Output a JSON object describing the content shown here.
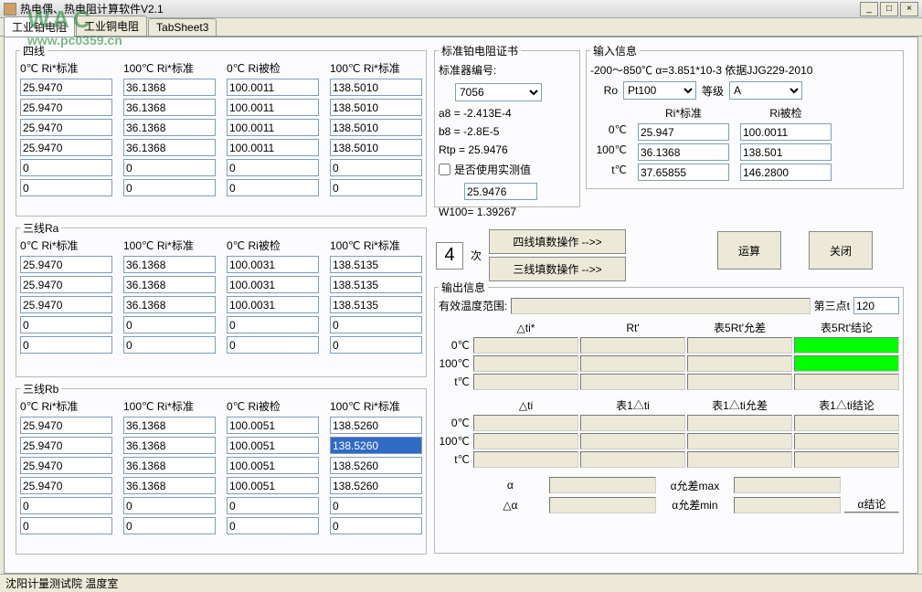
{
  "window": {
    "title": "热电偶、热电阻计算软件V2.1"
  },
  "tabs": {
    "t1": "工业铂电阻",
    "t2": "工业铜电阻",
    "t3": "TabSheet3"
  },
  "watermark": {
    "line1": "WAC",
    "line2": "www.pc0359.cn"
  },
  "left": {
    "sections": [
      {
        "name": "四线",
        "headers": [
          "0℃ Ri*标准",
          "100℃ Ri*标准",
          "0℃ Ri被检",
          "100℃ Ri*标准"
        ],
        "rows": [
          [
            "25.9470",
            "36.1368",
            "100.0011",
            "138.5010"
          ],
          [
            "25.9470",
            "36.1368",
            "100.0011",
            "138.5010"
          ],
          [
            "25.9470",
            "36.1368",
            "100.0011",
            "138.5010"
          ],
          [
            "25.9470",
            "36.1368",
            "100.0011",
            "138.5010"
          ],
          [
            "0",
            "0",
            "0",
            "0"
          ],
          [
            "0",
            "0",
            "0",
            "0"
          ]
        ],
        "selected": null
      },
      {
        "name": "三线Ra",
        "headers": [
          "0℃ Ri*标准",
          "100℃ Ri*标准",
          "0℃ Ri被检",
          "100℃ Ri*标准"
        ],
        "rows": [
          [
            "25.9470",
            "36.1368",
            "100.0031",
            "138.5135"
          ],
          [
            "25.9470",
            "36.1368",
            "100.0031",
            "138.5135"
          ],
          [
            "25.9470",
            "36.1368",
            "100.0031",
            "138.5135"
          ],
          [
            "0",
            "0",
            "0",
            "0"
          ],
          [
            "0",
            "0",
            "0",
            "0"
          ]
        ],
        "selected": null
      },
      {
        "name": "三线Rb",
        "headers": [
          "0℃ Ri*标准",
          "100℃ Ri*标准",
          "0℃ Ri被检",
          "100℃ Ri*标准"
        ],
        "rows": [
          [
            "25.9470",
            "36.1368",
            "100.0051",
            "138.5260"
          ],
          [
            "25.9470",
            "36.1368",
            "100.0051",
            "138.5260"
          ],
          [
            "25.9470",
            "36.1368",
            "100.0051",
            "138.5260"
          ],
          [
            "25.9470",
            "36.1368",
            "100.0051",
            "138.5260"
          ],
          [
            "0",
            "0",
            "0",
            "0"
          ],
          [
            "0",
            "0",
            "0",
            "0"
          ]
        ],
        "selected": [
          1,
          3
        ]
      }
    ]
  },
  "cert": {
    "title": "标准铂电阻证书",
    "serial_label": "标准器编号:",
    "serial": "7056",
    "a8": "a8 = -2.413E-4",
    "b8": "b8 = -2.8E-5",
    "rtp": "Rtp = 25.9476",
    "use_measured": "是否使用实测值",
    "measured": "25.9476",
    "w100": "W100= 1.39267"
  },
  "input": {
    "title": "输入信息",
    "range": "-200～850℃ α=3.851*10-3 依据JJG229-2010",
    "ro_label": "Ro",
    "ro": "Pt100",
    "grade_label": "等级",
    "grade": "A",
    "std_label": "Ri*标准",
    "chk_label": "Ri被检",
    "r0c_label": "0℃",
    "r0c_std": "25.947",
    "r0c_chk": "100.0011",
    "r100c_label": "100℃",
    "r100c_std": "36.1368",
    "r100c_chk": "138.501",
    "rtc_label": "t℃",
    "rtc_std": "37.65855",
    "rtc_chk": "146.2800"
  },
  "ops": {
    "times_n": "4",
    "times_suffix": "次",
    "btn_4wire": "四线填数操作 -->>",
    "btn_3wire": "三线填数操作 -->>",
    "btn_calc": "运算",
    "btn_close": "关闭"
  },
  "output": {
    "title": "输出信息",
    "range_label": "有效温度范围:",
    "pt3_label": "第三点t",
    "pt3": "120",
    "hdrs1": [
      "△ti*",
      "Rt'",
      "表5Rt'允差",
      "表5Rt'结论"
    ],
    "rows1": [
      "0℃",
      "100℃",
      "t℃"
    ],
    "hdrs2": [
      "△ti",
      "表1△ti",
      "表1△ti允差",
      "表1△ti结论"
    ],
    "rows2": [
      "0℃",
      "100℃",
      "t℃"
    ],
    "alpha": "α",
    "alpha_tol_max": "α允差max",
    "dalpha": "△α",
    "alpha_tol_min": "α允差min",
    "alpha_concl": "α结论"
  },
  "status": "沈阳计量测试院 温度室",
  "colors": {
    "green": "#00ff00"
  }
}
